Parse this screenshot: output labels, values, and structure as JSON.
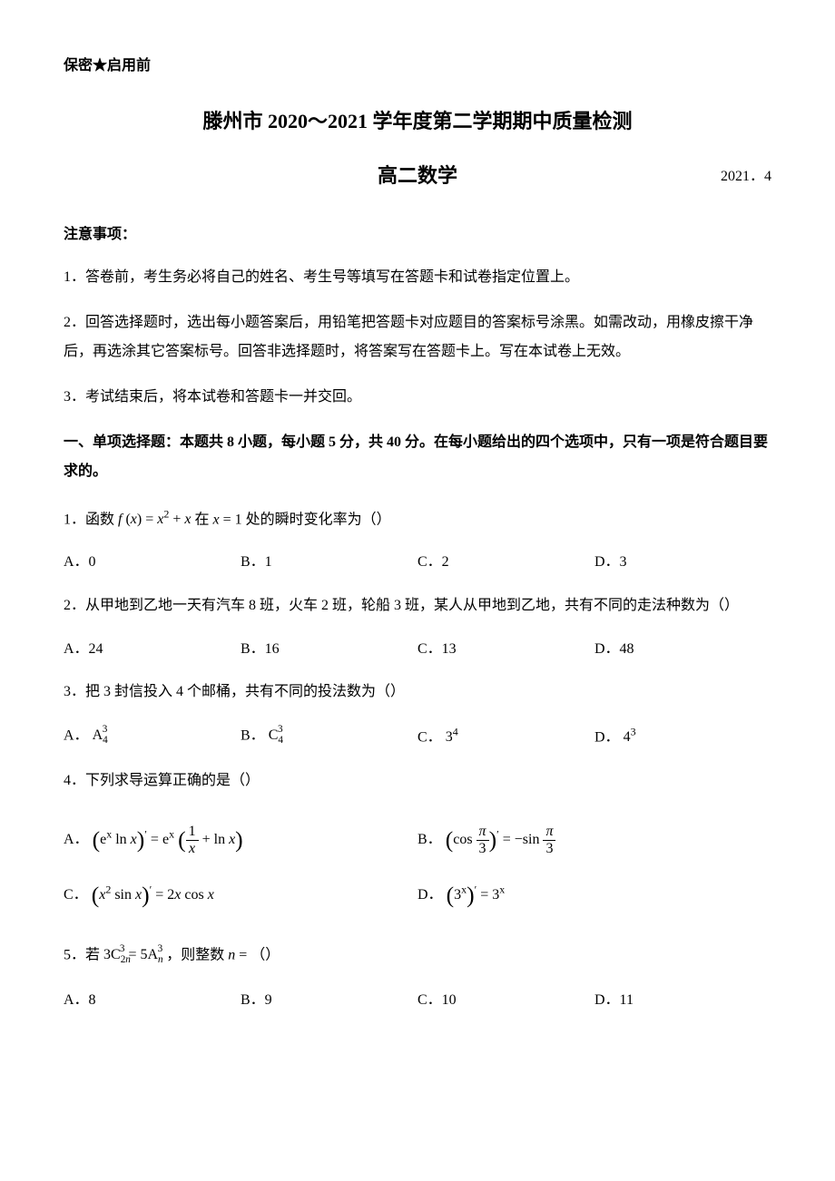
{
  "confidential": "保密★启用前",
  "main_title": "滕州市 2020～2021 学年度第二学期期中质量检测",
  "subtitle": "高二数学",
  "date_tag": "2021．4",
  "notes_label": "注意事项：",
  "notes": {
    "n1": "1．答卷前，考生务必将自己的姓名、考生号等填写在答题卡和试卷指定位置上。",
    "n2": "2．回答选择题时，选出每小题答案后，用铅笔把答题卡对应题目的答案标号涂黑。如需改动，用橡皮擦干净后，再选涂其它答案标号。回答非选择题时，将答案写在答题卡上。写在本试卷上无效。",
    "n3": "3．考试结束后，将本试卷和答题卡一并交回。"
  },
  "section1": "一、单项选择题：本题共 8 小题，每小题 5 分，共 40 分。在每小题给出的四个选项中，只有一项是符合题目要求的。",
  "q1": {
    "pre": "1．函数 ",
    "post": " 处的瞬时变化率为（）",
    "A": "A．0",
    "B": "B．1",
    "C": "C．2",
    "D": "D．3"
  },
  "q2": {
    "text": "2．从甲地到乙地一天有汽车 8 班，火车 2 班，轮船 3 班，某人从甲地到乙地，共有不同的走法种数为（）",
    "A": "A．24",
    "B": "B．16",
    "C": "C．13",
    "D": "D．48"
  },
  "q3": {
    "text": "3．把 3 封信投入 4 个邮桶，共有不同的投法数为（）",
    "A_pre": "A．",
    "B_pre": "B．",
    "C_pre": "C．",
    "D_pre": "D．"
  },
  "q4": {
    "text": "4．下列求导运算正确的是（）",
    "A_pre": "A．",
    "B_pre": "B．",
    "C_pre": "C．",
    "D_pre": "D．"
  },
  "q5": {
    "pre": "5．若 ",
    "mid": "，则整数 ",
    "post": "（）",
    "A": "A．8",
    "B": "B．9",
    "C": "C．10",
    "D": "D．11"
  }
}
